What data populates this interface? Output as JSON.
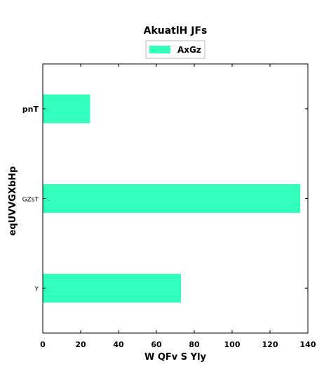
{
  "chart_data": {
    "type": "bar",
    "orientation": "horizontal",
    "title": "AkuatlH JFs",
    "xlabel": "W QFv S Yly",
    "ylabel": "eqUVVGXbHp",
    "categories": [
      "Y",
      "GZsT",
      "pnT"
    ],
    "series": [
      {
        "name": "AxGz",
        "values": [
          73,
          136,
          25
        ],
        "color": "#33ffbd"
      }
    ],
    "xlim": [
      0,
      140
    ],
    "xticks": [
      0,
      20,
      40,
      60,
      80,
      100,
      120,
      140
    ],
    "grid": false,
    "legend_position": "top-center"
  }
}
